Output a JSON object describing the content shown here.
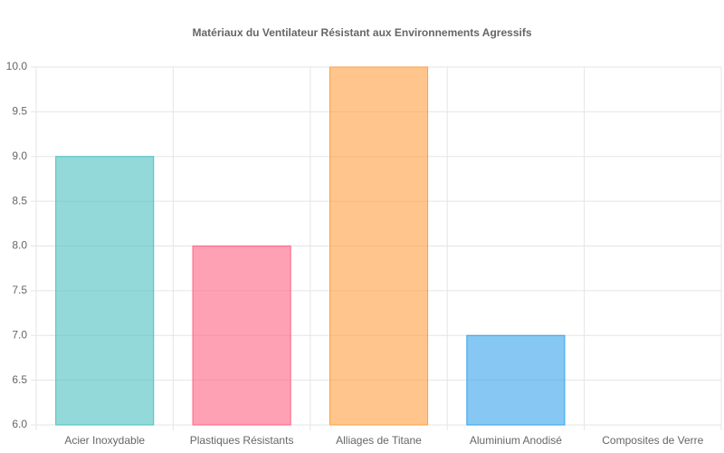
{
  "chart_data": {
    "type": "bar",
    "title": "Matériaux du Ventilateur Résistant aux Environnements Agressifs",
    "categories": [
      "Acier Inoxydable",
      "Plastiques Résistants",
      "Alliages de Titane",
      "Aluminium Anodisé",
      "Composites de Verre"
    ],
    "values": [
      9,
      8,
      10,
      7,
      6
    ],
    "colors": [
      "rgba(75,192,192,0.6)",
      "rgba(255,99,132,0.6)",
      "rgba(255,159,64,0.6)",
      "rgba(54,162,235,0.6)",
      "rgba(153,102,255,0.6)"
    ],
    "border_colors": [
      "rgb(75,192,192)",
      "rgb(255,99,132)",
      "rgb(255,159,64)",
      "rgb(54,162,235)",
      "rgb(153,102,255)"
    ],
    "ylim": [
      6,
      10
    ],
    "yticks": [
      {
        "value": 6,
        "label": "6.0"
      },
      6.5,
      {
        "value": 7,
        "label": "7.0"
      },
      7.5,
      {
        "value": 8,
        "label": "8.0"
      },
      8.5,
      {
        "value": 9,
        "label": "9.0"
      },
      9.5,
      {
        "value": 10,
        "label": "10.0"
      }
    ],
    "grid": true
  }
}
